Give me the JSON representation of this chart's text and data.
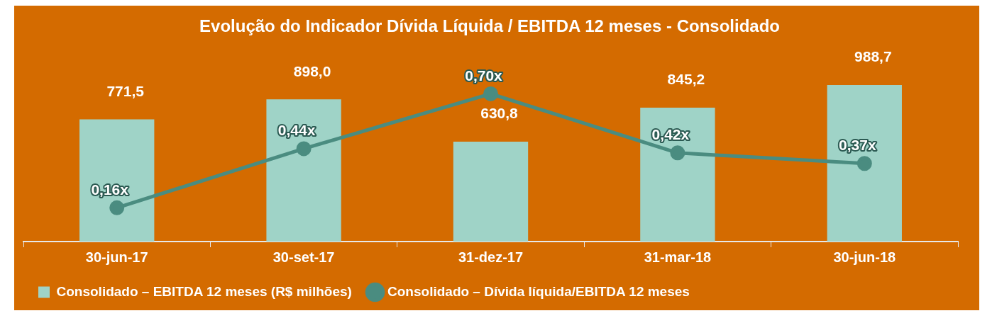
{
  "chart_data": {
    "type": "bar",
    "title": "Evolução do Indicador Dívida Líquida / EBITDA 12 meses - Consolidado",
    "categories": [
      "30-jun-17",
      "30-set-17",
      "31-dez-17",
      "31-mar-18",
      "30-jun-18"
    ],
    "series": [
      {
        "name": "Consolidado – EBITDA 12 meses (R$ milhões)",
        "color": "#9fd3c7",
        "values": [
          771.5,
          898.0,
          630.8,
          845.2,
          988.7
        ],
        "value_labels": [
          "771,5",
          "898,0",
          "630,8",
          "845,2",
          "988,7"
        ]
      },
      {
        "name": "Consolidado – Dívida líquida/EBITDA 12 meses",
        "type": "line",
        "axis": "y2",
        "color": "#4a8c80",
        "values": [
          0.16,
          0.44,
          0.7,
          0.42,
          0.37
        ],
        "value_labels": [
          "0,16x",
          "0,44x",
          "0,70x",
          "0,42x",
          "0,37x"
        ]
      }
    ],
    "marker": "circle",
    "legend": "bottom",
    "grid": false,
    "tick_labels": "x"
  }
}
